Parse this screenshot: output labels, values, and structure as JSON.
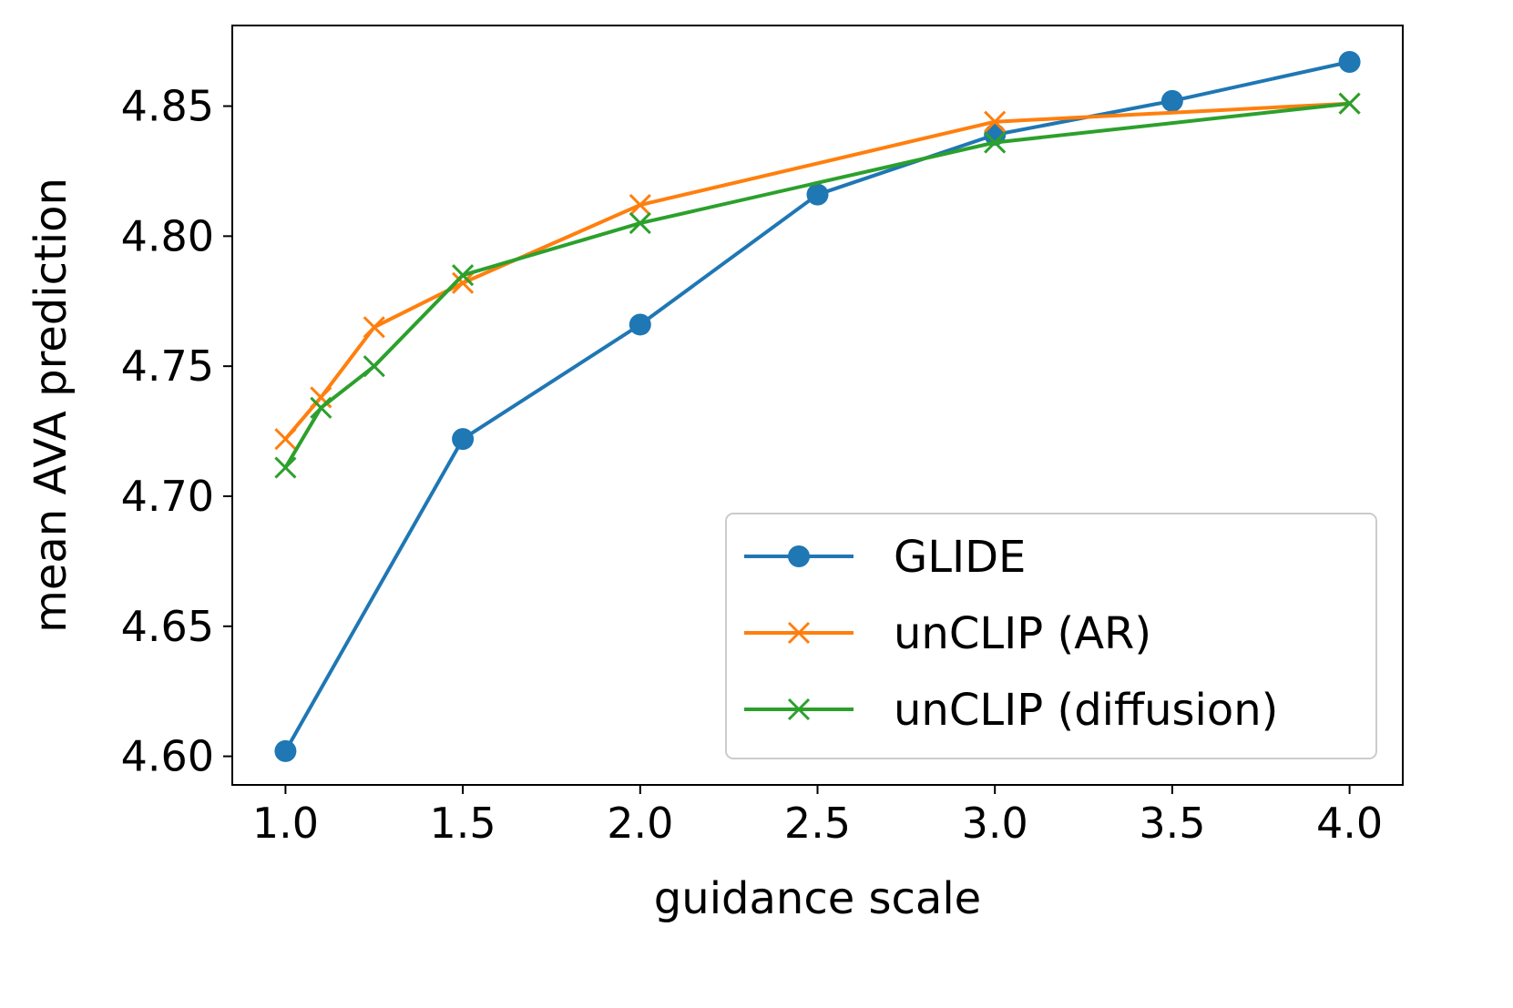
{
  "chart_data": {
    "type": "line",
    "title": "",
    "xlabel": "guidance scale",
    "ylabel": "mean AVA prediction",
    "xlim": [
      0.85,
      4.15
    ],
    "ylim": [
      4.589,
      4.881
    ],
    "xticks": [
      1.0,
      1.5,
      2.0,
      2.5,
      3.0,
      3.5,
      4.0
    ],
    "xtick_labels": [
      "1.0",
      "1.5",
      "2.0",
      "2.5",
      "3.0",
      "3.5",
      "4.0"
    ],
    "yticks": [
      4.6,
      4.65,
      4.7,
      4.75,
      4.8,
      4.85
    ],
    "ytick_labels": [
      "4.60",
      "4.65",
      "4.70",
      "4.75",
      "4.80",
      "4.85"
    ],
    "grid": false,
    "legend_position": "lower-right",
    "series": [
      {
        "name": "GLIDE",
        "color": "#1f77b4",
        "marker": "circle",
        "x": [
          1.0,
          1.5,
          2.0,
          2.5,
          3.0,
          3.5,
          4.0
        ],
        "y": [
          4.602,
          4.722,
          4.766,
          4.816,
          4.839,
          4.852,
          4.867
        ]
      },
      {
        "name": "unCLIP (AR)",
        "color": "#ff7f0e",
        "marker": "x",
        "x": [
          1.0,
          1.1,
          1.25,
          1.5,
          2.0,
          3.0,
          4.0
        ],
        "y": [
          4.722,
          4.738,
          4.765,
          4.782,
          4.812,
          4.844,
          4.851
        ]
      },
      {
        "name": "unCLIP (diffusion)",
        "color": "#2ca02c",
        "marker": "x",
        "x": [
          1.0,
          1.1,
          1.25,
          1.5,
          2.0,
          3.0,
          4.0
        ],
        "y": [
          4.711,
          4.734,
          4.75,
          4.785,
          4.805,
          4.836,
          4.851
        ]
      }
    ]
  }
}
